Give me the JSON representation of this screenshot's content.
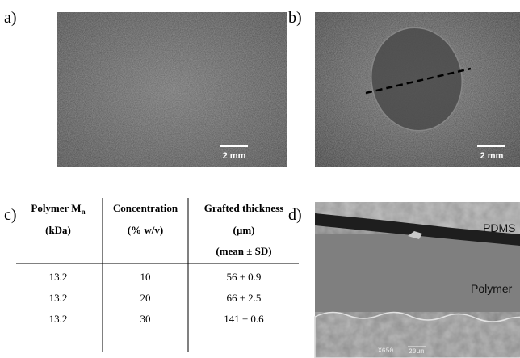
{
  "panels": {
    "a": "a)",
    "b": "b)",
    "c": "c)",
    "d": "d)"
  },
  "images": {
    "a": {
      "scale_bar": "2 mm"
    },
    "b": {
      "scale_bar": "2 mm"
    },
    "d": {
      "labels": [
        "PDMS",
        "Polymer"
      ],
      "magnification": "X650",
      "scale_bar": "20µm"
    }
  },
  "table": {
    "header": [
      [
        "Polymer M",
        "(kDa)"
      ],
      [
        "Concentration",
        "(% w/v)"
      ],
      [
        "Grafted thickness",
        "(µm)",
        "(mean ± SD)"
      ]
    ],
    "header_subscript": "n",
    "rows": [
      [
        "13.2",
        "10",
        "56 ± 0.9"
      ],
      [
        "13.2",
        "20",
        "66 ± 2.5"
      ],
      [
        "13.2",
        "30",
        "141 ± 0.6"
      ]
    ]
  }
}
